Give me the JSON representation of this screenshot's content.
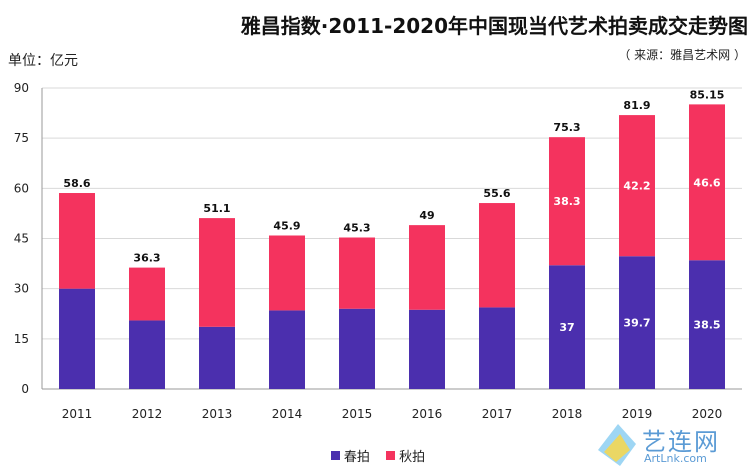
{
  "header": {
    "title": "雅昌指数·2011-2020年中国现当代艺术拍卖成交走势图",
    "source": "（ 来源：雅昌艺术网 ）",
    "unit": "单位：亿元"
  },
  "colors": {
    "spring": "#4b2fae",
    "autumn": "#f4335e",
    "axis": "#999999",
    "grid": "#d9d9d9"
  },
  "chart_data": {
    "type": "bar",
    "stacked": true,
    "categories": [
      "2011",
      "2012",
      "2013",
      "2014",
      "2015",
      "2016",
      "2017",
      "2018",
      "2019",
      "2020"
    ],
    "series": [
      {
        "name": "春拍",
        "values": [
          30.0,
          20.5,
          18.6,
          23.5,
          24.0,
          23.7,
          24.4,
          37.0,
          39.7,
          38.5
        ]
      },
      {
        "name": "秋拍",
        "values": [
          28.6,
          15.8,
          32.5,
          22.4,
          21.3,
          25.3,
          31.2,
          38.3,
          42.2,
          46.6
        ]
      }
    ],
    "totals": [
      "58.6",
      "36.3",
      "51.1",
      "45.9",
      "45.3",
      "49",
      "55.6",
      "75.3",
      "81.9",
      "85.15"
    ],
    "segment_labels": {
      "春拍": [
        "",
        "",
        "",
        "",
        "",
        "",
        "",
        "37",
        "39.7",
        "38.5"
      ],
      "秋拍": [
        "",
        "",
        "",
        "",
        "",
        "",
        "",
        "38.3",
        "42.2",
        "46.6"
      ]
    },
    "yticks": [
      0,
      15,
      30,
      45,
      60,
      75,
      90
    ],
    "ylim": [
      0,
      90
    ],
    "grid": true,
    "legend_position": "bottom"
  },
  "legend": {
    "items": [
      {
        "label": "春拍",
        "color": "#4b2fae"
      },
      {
        "label": "秋拍",
        "color": "#f4335e"
      }
    ]
  },
  "watermark": {
    "text_cn": "艺连网",
    "text_en": "ArtLnk.com"
  }
}
